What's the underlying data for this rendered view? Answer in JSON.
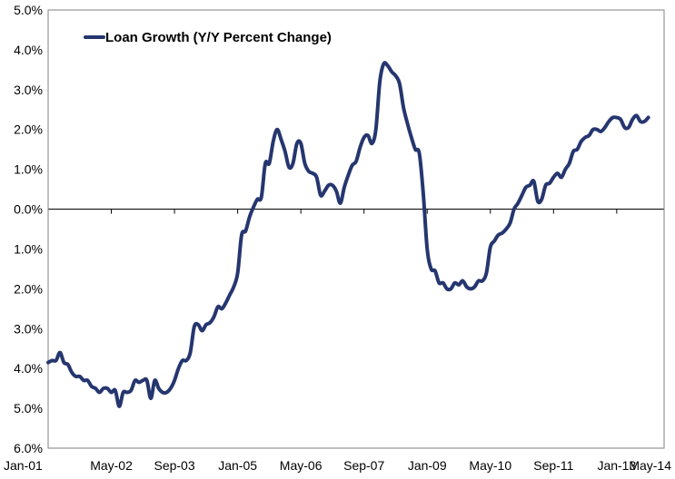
{
  "chart_data": {
    "type": "line",
    "title": "",
    "xlabel": "",
    "ylabel": "",
    "series": [
      {
        "name": "Loan Growth  (Y/Y Percent Change)",
        "color": "#25366F",
        "points": [
          [
            0,
            -3.85
          ],
          [
            1,
            -3.8
          ],
          [
            2,
            -3.8
          ],
          [
            3,
            -3.6
          ],
          [
            4,
            -3.85
          ],
          [
            5,
            -3.9
          ],
          [
            6,
            -4.1
          ],
          [
            7,
            -4.2
          ],
          [
            8,
            -4.2
          ],
          [
            9,
            -4.3
          ],
          [
            10,
            -4.3
          ],
          [
            11,
            -4.45
          ],
          [
            12,
            -4.5
          ],
          [
            13,
            -4.6
          ],
          [
            14,
            -4.5
          ],
          [
            15,
            -4.5
          ],
          [
            16,
            -4.6
          ],
          [
            17,
            -4.55
          ],
          [
            18,
            -4.95
          ],
          [
            19,
            -4.6
          ],
          [
            20,
            -4.6
          ],
          [
            21,
            -4.55
          ],
          [
            22,
            -4.3
          ],
          [
            23,
            -4.35
          ],
          [
            24,
            -4.3
          ],
          [
            25,
            -4.3
          ],
          [
            26,
            -4.75
          ],
          [
            27,
            -4.3
          ],
          [
            28,
            -4.5
          ],
          [
            29,
            -4.6
          ],
          [
            30,
            -4.6
          ],
          [
            31,
            -4.5
          ],
          [
            32,
            -4.3
          ],
          [
            33,
            -4.0
          ],
          [
            34,
            -3.8
          ],
          [
            35,
            -3.8
          ],
          [
            36,
            -3.6
          ],
          [
            37,
            -2.95
          ],
          [
            38,
            -2.9
          ],
          [
            39,
            -3.05
          ],
          [
            40,
            -2.9
          ],
          [
            41,
            -2.85
          ],
          [
            42,
            -2.7
          ],
          [
            43,
            -2.45
          ],
          [
            44,
            -2.5
          ],
          [
            45,
            -2.35
          ],
          [
            46,
            -2.15
          ],
          [
            47,
            -1.95
          ],
          [
            48,
            -1.6
          ],
          [
            49,
            -0.65
          ],
          [
            50,
            -0.55
          ],
          [
            51,
            -0.2
          ],
          [
            52,
            0.05
          ],
          [
            53,
            0.25
          ],
          [
            54,
            0.3
          ],
          [
            55,
            1.15
          ],
          [
            56,
            1.15
          ],
          [
            57,
            1.7
          ],
          [
            58,
            2.0
          ],
          [
            59,
            1.75
          ],
          [
            60,
            1.45
          ],
          [
            61,
            1.05
          ],
          [
            62,
            1.15
          ],
          [
            63,
            1.65
          ],
          [
            64,
            1.65
          ],
          [
            65,
            1.15
          ],
          [
            66,
            0.95
          ],
          [
            67,
            0.9
          ],
          [
            68,
            0.8
          ],
          [
            69,
            0.35
          ],
          [
            70,
            0.45
          ],
          [
            71,
            0.6
          ],
          [
            72,
            0.6
          ],
          [
            73,
            0.45
          ],
          [
            74,
            0.15
          ],
          [
            75,
            0.55
          ],
          [
            76,
            0.85
          ],
          [
            77,
            1.1
          ],
          [
            78,
            1.2
          ],
          [
            79,
            1.55
          ],
          [
            80,
            1.8
          ],
          [
            81,
            1.85
          ],
          [
            82,
            1.65
          ],
          [
            83,
            2.0
          ],
          [
            84,
            3.2
          ],
          [
            85,
            3.65
          ],
          [
            86,
            3.6
          ],
          [
            87,
            3.45
          ],
          [
            88,
            3.35
          ],
          [
            89,
            3.15
          ],
          [
            90,
            2.55
          ],
          [
            91,
            2.15
          ],
          [
            92,
            1.8
          ],
          [
            93,
            1.5
          ],
          [
            94,
            1.4
          ],
          [
            95,
            0.4
          ],
          [
            96,
            -1.0
          ],
          [
            97,
            -1.5
          ],
          [
            98,
            -1.55
          ],
          [
            99,
            -1.85
          ],
          [
            100,
            -1.85
          ],
          [
            101,
            -2.0
          ],
          [
            102,
            -2.0
          ],
          [
            103,
            -1.85
          ],
          [
            104,
            -1.9
          ],
          [
            105,
            -1.8
          ],
          [
            106,
            -1.95
          ],
          [
            107,
            -2.0
          ],
          [
            108,
            -1.95
          ],
          [
            109,
            -1.8
          ],
          [
            110,
            -1.8
          ],
          [
            111,
            -1.6
          ],
          [
            112,
            -0.95
          ],
          [
            113,
            -0.8
          ],
          [
            114,
            -0.65
          ],
          [
            115,
            -0.6
          ],
          [
            116,
            -0.5
          ],
          [
            117,
            -0.35
          ],
          [
            118,
            0.0
          ],
          [
            119,
            0.15
          ],
          [
            120,
            0.35
          ],
          [
            121,
            0.55
          ],
          [
            122,
            0.6
          ],
          [
            123,
            0.7
          ],
          [
            124,
            0.2
          ],
          [
            125,
            0.25
          ],
          [
            126,
            0.6
          ],
          [
            127,
            0.65
          ],
          [
            128,
            0.8
          ],
          [
            129,
            0.9
          ],
          [
            130,
            0.8
          ],
          [
            131,
            1.0
          ],
          [
            132,
            1.15
          ],
          [
            133,
            1.45
          ],
          [
            134,
            1.5
          ],
          [
            135,
            1.7
          ],
          [
            136,
            1.8
          ],
          [
            137,
            1.85
          ],
          [
            138,
            2.0
          ],
          [
            139,
            2.0
          ],
          [
            140,
            1.95
          ],
          [
            141,
            2.05
          ],
          [
            142,
            2.2
          ],
          [
            143,
            2.3
          ],
          [
            144,
            2.3
          ],
          [
            145,
            2.25
          ],
          [
            146,
            2.05
          ],
          [
            147,
            2.05
          ],
          [
            148,
            2.25
          ],
          [
            149,
            2.35
          ],
          [
            150,
            2.2
          ],
          [
            151,
            2.2
          ],
          [
            152,
            2.3
          ]
        ]
      }
    ],
    "ylim": [
      -6.0,
      5.0
    ],
    "y_ticks": [
      5.0,
      4.0,
      3.0,
      2.0,
      1.0,
      0.0,
      -1.0,
      -2.0,
      -3.0,
      -4.0,
      -5.0,
      -6.0
    ],
    "y_tick_labels": [
      "5.0%",
      "4.0%",
      "3.0%",
      "2.0%",
      "1.0%",
      "0.0%",
      "1.0%",
      "2.0%",
      "3.0%",
      "4.0%",
      "5.0%",
      "6.0%"
    ],
    "x_ticks": [
      0,
      16,
      32,
      48,
      64,
      80,
      96,
      112,
      128,
      144
    ],
    "x_tick_labels": [
      "Jan-01",
      "May-02",
      "Sep-03",
      "Jan-05",
      "May-06",
      "Sep-07",
      "Jan-09",
      "May-10",
      "Sep-11",
      "Jan-13",
      "May-14"
    ],
    "x_tick_label_months": [
      0,
      16,
      32,
      48,
      64,
      80,
      96,
      112,
      128,
      144,
      160
    ],
    "xlim": [
      0,
      156
    ],
    "grid": false,
    "zero_line": true,
    "legend_position": "top-left"
  }
}
